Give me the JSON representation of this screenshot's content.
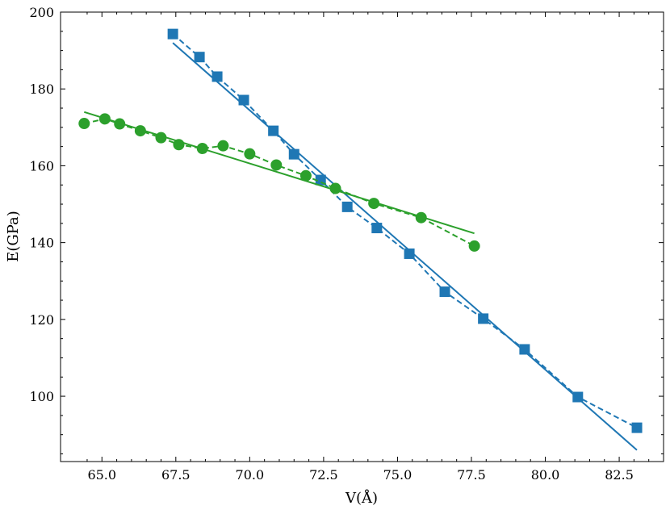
{
  "chart_data": {
    "type": "line",
    "xlabel": "V(Å)",
    "ylabel": "E(GPa)",
    "xlim": [
      63.6,
      84.0
    ],
    "ylim": [
      83,
      200
    ],
    "xticks": [
      65.0,
      67.5,
      70.0,
      72.5,
      75.0,
      77.5,
      80.0,
      82.5
    ],
    "xtick_labels": [
      "65.0",
      "67.5",
      "70.0",
      "72.5",
      "75.0",
      "77.5",
      "80.0",
      "82.5"
    ],
    "yticks": [
      100,
      120,
      140,
      160,
      180,
      200
    ],
    "ytick_labels": [
      "100",
      "120",
      "140",
      "160",
      "180",
      "200"
    ],
    "grid": false,
    "series": [
      {
        "color": "#1f77b4",
        "marker": "square",
        "style": "dashed",
        "x": [
          67.4,
          68.3,
          68.9,
          69.8,
          70.8,
          71.5,
          72.4,
          73.3,
          74.3,
          75.4,
          76.6,
          77.9,
          79.3,
          81.1,
          83.1
        ],
        "y": [
          194.3,
          188.3,
          183.2,
          177.1,
          169.1,
          163.0,
          156.3,
          149.3,
          143.8,
          137.1,
          127.2,
          120.2,
          112.2,
          99.8,
          91.8
        ]
      },
      {
        "color": "#1f77b4",
        "style": "solid",
        "x": [
          67.4,
          83.1
        ],
        "y": [
          192.0,
          86.0
        ]
      },
      {
        "color": "#2ca02c",
        "marker": "circle",
        "style": "dashed",
        "x": [
          64.4,
          65.1,
          65.6,
          66.3,
          67.0,
          67.6,
          68.4,
          69.1,
          70.0,
          70.9,
          71.9,
          72.9,
          74.2,
          75.8,
          77.6
        ],
        "y": [
          171.0,
          172.2,
          170.9,
          169.1,
          167.3,
          165.5,
          164.5,
          165.2,
          163.1,
          160.2,
          157.4,
          154.1,
          150.2,
          146.5,
          139.1
        ]
      },
      {
        "color": "#2ca02c",
        "style": "solid",
        "x": [
          64.4,
          77.6
        ],
        "y": [
          174.0,
          142.4
        ]
      }
    ]
  }
}
